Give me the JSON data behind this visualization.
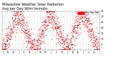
{
  "title": "Milwaukee Weather Solar Radiation",
  "subtitle": "Avg per Day W/m²/minute",
  "title_fontsize": 3.5,
  "background_color": "#ffffff",
  "plot_bg_color": "#ffffff",
  "grid_color": "#bbbbbb",
  "ylim": [
    0,
    35
  ],
  "yticks": [
    5,
    10,
    15,
    20,
    25,
    30,
    35
  ],
  "ytick_fontsize": 2.5,
  "xtick_fontsize": 2.0,
  "dot_size": 0.6,
  "red_color": "#ff0000",
  "black_color": "#000000",
  "legend_label": "Avg Solar Rad",
  "legend_box_color": "#ff0000",
  "n_months": 36,
  "seed": 12
}
